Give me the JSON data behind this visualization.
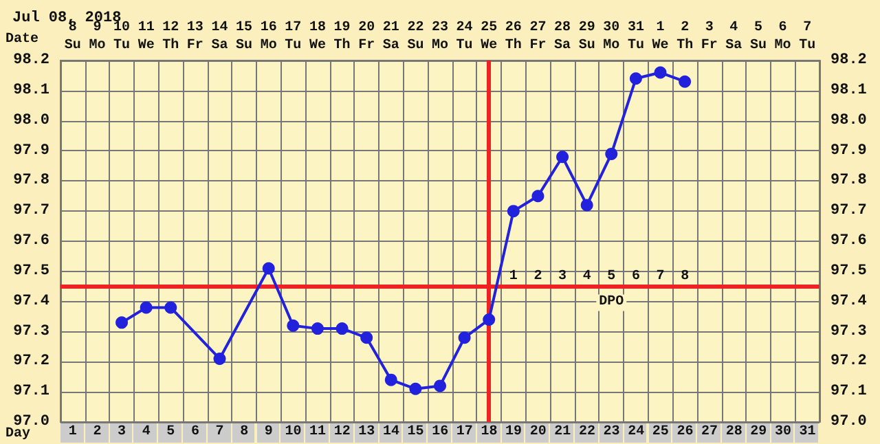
{
  "chart_data": {
    "type": "line",
    "title": "Jul 08, 2018",
    "categories": [
      "8\nSu",
      "9\nMo",
      "10\nTu",
      "11\nWe",
      "12\nTh",
      "13\nFr",
      "14\nSa",
      "15\nSu",
      "16\nMo",
      "17\nTu",
      "18\nWe",
      "19\nTh",
      "20\nFr",
      "21\nSa",
      "22\nSu",
      "23\nMo",
      "24\nTu",
      "25\nWe",
      "26\nTh",
      "27\nFr",
      "28\nSa",
      "29\nSu",
      "30\nMo",
      "31\nTu",
      "1\nWe",
      "2\nTh",
      "3\nFr",
      "4\nSa",
      "5\nSu",
      "6\nMo",
      "7\nTu"
    ],
    "series": [
      {
        "color": "#2222dd",
        "values": [
          null,
          null,
          97.33,
          97.38,
          97.38,
          null,
          97.21,
          null,
          97.51,
          97.32,
          97.31,
          97.31,
          97.28,
          97.14,
          97.11,
          97.12,
          97.28,
          97.34,
          97.7,
          97.75,
          97.88,
          97.72,
          97.89,
          98.14,
          98.16,
          98.13,
          null,
          null,
          null,
          null,
          null
        ]
      }
    ],
    "ylim": [
      97.0,
      98.2
    ],
    "yticks": [
      {
        "value": 97.0,
        "label": "97.0"
      },
      97.1,
      97.2,
      97.3,
      97.4,
      97.5,
      97.6,
      97.7,
      97.8,
      97.9,
      {
        "value": 98.0,
        "label": "98.0"
      },
      98.1,
      98.2
    ],
    "y2lim": [
      97.0,
      98.2
    ],
    "y2ticks": [
      {
        "value": 97.0,
        "label": "97.0"
      },
      97.1,
      97.2,
      97.3,
      97.4,
      97.5,
      97.6,
      97.7,
      97.8,
      97.9,
      {
        "value": 98.0,
        "label": "98.0"
      },
      98.1,
      98.2
    ],
    "grid": true,
    "marker": "circle",
    "line_style": "solid",
    "ref_lines": [
      {
        "axis": "y",
        "value": 97.45,
        "color": "#ee2222"
      },
      {
        "axis": "x",
        "value": "25\nWe",
        "color": "#ee2222"
      }
    ],
    "annotations": [
      "Date",
      "Day",
      "1 2 3 4 5 6 7 8",
      "DPO",
      "1 2 3 4 5 6 7 8 9 10 11 12 13 14 15 16 17 18 19 20 21 22 23 24 25 26 27 28 29 30 31"
    ]
  }
}
